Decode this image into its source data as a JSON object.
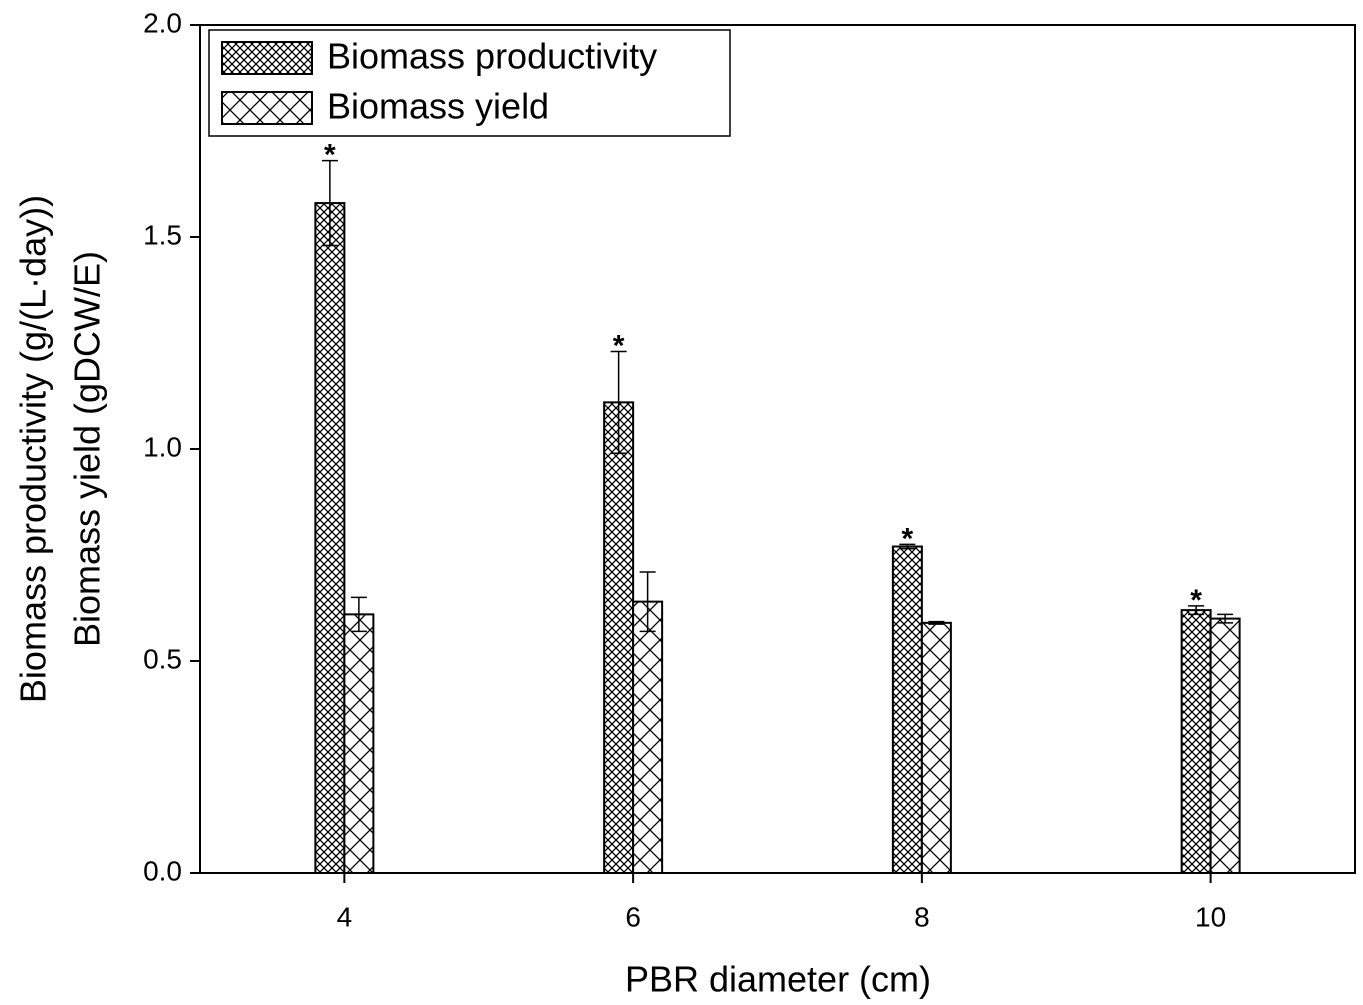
{
  "chart_data": {
    "type": "bar",
    "xlabel": "PBR diameter (cm)",
    "ylabel": [
      "Biomass productivity (g/(L·day))",
      "Biomass yield (gDCW/E)"
    ],
    "x": [
      4,
      6,
      8,
      10
    ],
    "xlim": [
      3,
      11
    ],
    "xticks": [
      4,
      6,
      8,
      10
    ],
    "ylim": [
      0,
      2
    ],
    "yticks": [
      {
        "value": 0,
        "label": "0.0"
      },
      {
        "value": 0.5,
        "label": "0.5"
      },
      {
        "value": 1,
        "label": "1.0"
      },
      {
        "value": 1.5,
        "label": "1.5"
      },
      {
        "value": 2,
        "label": "2.0"
      }
    ],
    "legend": "upper left",
    "series": [
      {
        "name": "Biomass productivity",
        "color": "#000000",
        "hatch": "fine-crosshatch",
        "values": [
          1.58,
          1.11,
          0.77,
          0.62
        ],
        "errors": [
          0.1,
          0.12,
          0.005,
          0.01
        ],
        "value_annotations": [
          "*",
          "*",
          "*",
          "*"
        ]
      },
      {
        "name": "Biomass yield",
        "color": "#000000",
        "hatch": "coarse-crosshatch",
        "values": [
          0.61,
          0.64,
          0.59,
          0.6
        ],
        "errors": [
          0.04,
          0.07,
          0.003,
          0.01
        ]
      }
    ]
  }
}
